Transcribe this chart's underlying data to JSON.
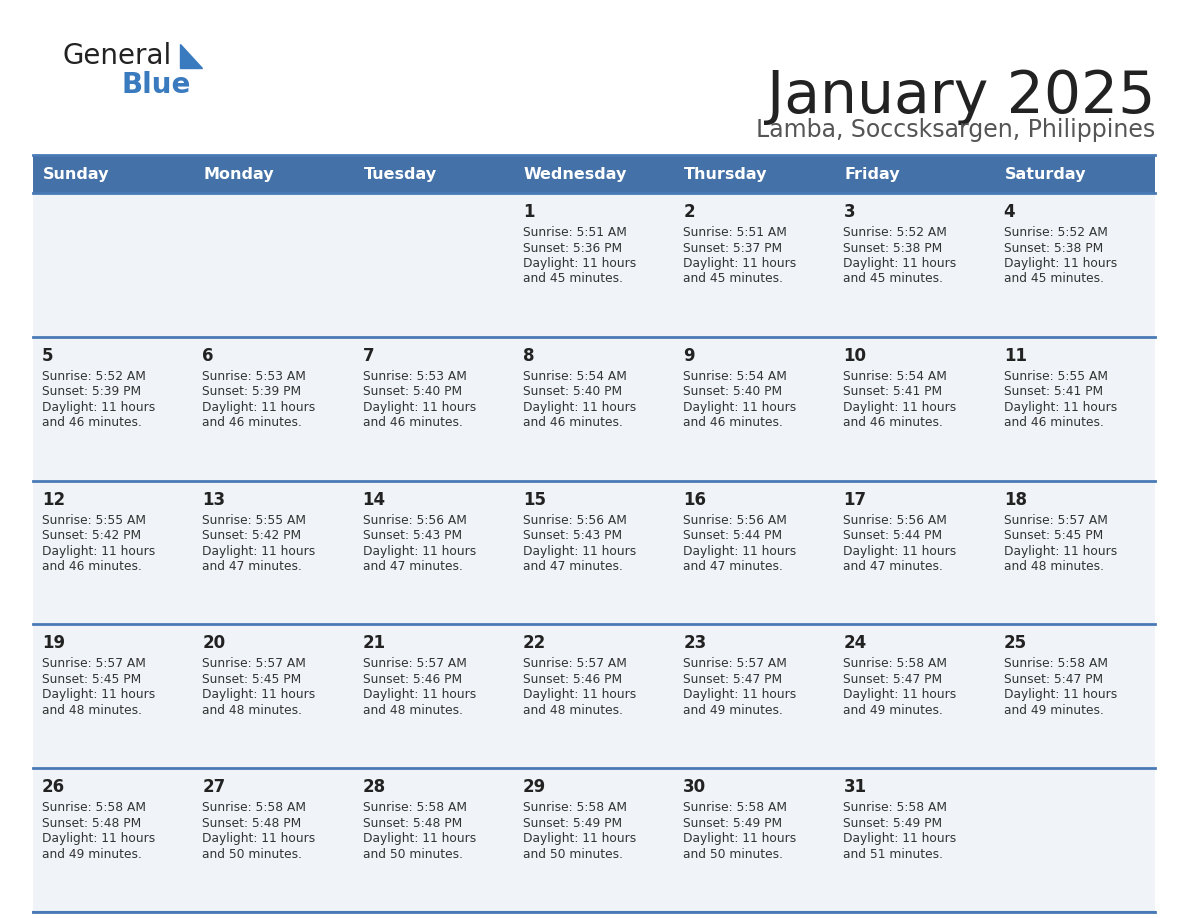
{
  "title": "January 2025",
  "subtitle": "Lamba, Soccsksargen, Philippines",
  "header_bg": "#4472a8",
  "header_text": "#ffffff",
  "cell_bg": "#f0f4f8",
  "cell_bg2": "#ffffff",
  "divider_color": "#4a7ab5",
  "text_color": "#333333",
  "day_names": [
    "Sunday",
    "Monday",
    "Tuesday",
    "Wednesday",
    "Thursday",
    "Friday",
    "Saturday"
  ],
  "calendar": [
    [
      {
        "day": "",
        "sunrise": "",
        "sunset": "",
        "daylight_min": ""
      },
      {
        "day": "",
        "sunrise": "",
        "sunset": "",
        "daylight_min": ""
      },
      {
        "day": "",
        "sunrise": "",
        "sunset": "",
        "daylight_min": ""
      },
      {
        "day": "1",
        "sunrise": "5:51 AM",
        "sunset": "5:36 PM",
        "daylight_min": "45"
      },
      {
        "day": "2",
        "sunrise": "5:51 AM",
        "sunset": "5:37 PM",
        "daylight_min": "45"
      },
      {
        "day": "3",
        "sunrise": "5:52 AM",
        "sunset": "5:38 PM",
        "daylight_min": "45"
      },
      {
        "day": "4",
        "sunrise": "5:52 AM",
        "sunset": "5:38 PM",
        "daylight_min": "45"
      }
    ],
    [
      {
        "day": "5",
        "sunrise": "5:52 AM",
        "sunset": "5:39 PM",
        "daylight_min": "46"
      },
      {
        "day": "6",
        "sunrise": "5:53 AM",
        "sunset": "5:39 PM",
        "daylight_min": "46"
      },
      {
        "day": "7",
        "sunrise": "5:53 AM",
        "sunset": "5:40 PM",
        "daylight_min": "46"
      },
      {
        "day": "8",
        "sunrise": "5:54 AM",
        "sunset": "5:40 PM",
        "daylight_min": "46"
      },
      {
        "day": "9",
        "sunrise": "5:54 AM",
        "sunset": "5:40 PM",
        "daylight_min": "46"
      },
      {
        "day": "10",
        "sunrise": "5:54 AM",
        "sunset": "5:41 PM",
        "daylight_min": "46"
      },
      {
        "day": "11",
        "sunrise": "5:55 AM",
        "sunset": "5:41 PM",
        "daylight_min": "46"
      }
    ],
    [
      {
        "day": "12",
        "sunrise": "5:55 AM",
        "sunset": "5:42 PM",
        "daylight_min": "46"
      },
      {
        "day": "13",
        "sunrise": "5:55 AM",
        "sunset": "5:42 PM",
        "daylight_min": "47"
      },
      {
        "day": "14",
        "sunrise": "5:56 AM",
        "sunset": "5:43 PM",
        "daylight_min": "47"
      },
      {
        "day": "15",
        "sunrise": "5:56 AM",
        "sunset": "5:43 PM",
        "daylight_min": "47"
      },
      {
        "day": "16",
        "sunrise": "5:56 AM",
        "sunset": "5:44 PM",
        "daylight_min": "47"
      },
      {
        "day": "17",
        "sunrise": "5:56 AM",
        "sunset": "5:44 PM",
        "daylight_min": "47"
      },
      {
        "day": "18",
        "sunrise": "5:57 AM",
        "sunset": "5:45 PM",
        "daylight_min": "48"
      }
    ],
    [
      {
        "day": "19",
        "sunrise": "5:57 AM",
        "sunset": "5:45 PM",
        "daylight_min": "48"
      },
      {
        "day": "20",
        "sunrise": "5:57 AM",
        "sunset": "5:45 PM",
        "daylight_min": "48"
      },
      {
        "day": "21",
        "sunrise": "5:57 AM",
        "sunset": "5:46 PM",
        "daylight_min": "48"
      },
      {
        "day": "22",
        "sunrise": "5:57 AM",
        "sunset": "5:46 PM",
        "daylight_min": "48"
      },
      {
        "day": "23",
        "sunrise": "5:57 AM",
        "sunset": "5:47 PM",
        "daylight_min": "49"
      },
      {
        "day": "24",
        "sunrise": "5:58 AM",
        "sunset": "5:47 PM",
        "daylight_min": "49"
      },
      {
        "day": "25",
        "sunrise": "5:58 AM",
        "sunset": "5:47 PM",
        "daylight_min": "49"
      }
    ],
    [
      {
        "day": "26",
        "sunrise": "5:58 AM",
        "sunset": "5:48 PM",
        "daylight_min": "49"
      },
      {
        "day": "27",
        "sunrise": "5:58 AM",
        "sunset": "5:48 PM",
        "daylight_min": "50"
      },
      {
        "day": "28",
        "sunrise": "5:58 AM",
        "sunset": "5:48 PM",
        "daylight_min": "50"
      },
      {
        "day": "29",
        "sunrise": "5:58 AM",
        "sunset": "5:49 PM",
        "daylight_min": "50"
      },
      {
        "day": "30",
        "sunrise": "5:58 AM",
        "sunset": "5:49 PM",
        "daylight_min": "50"
      },
      {
        "day": "31",
        "sunrise": "5:58 AM",
        "sunset": "5:49 PM",
        "daylight_min": "51"
      },
      {
        "day": "",
        "sunrise": "",
        "sunset": "",
        "daylight_min": ""
      }
    ]
  ]
}
